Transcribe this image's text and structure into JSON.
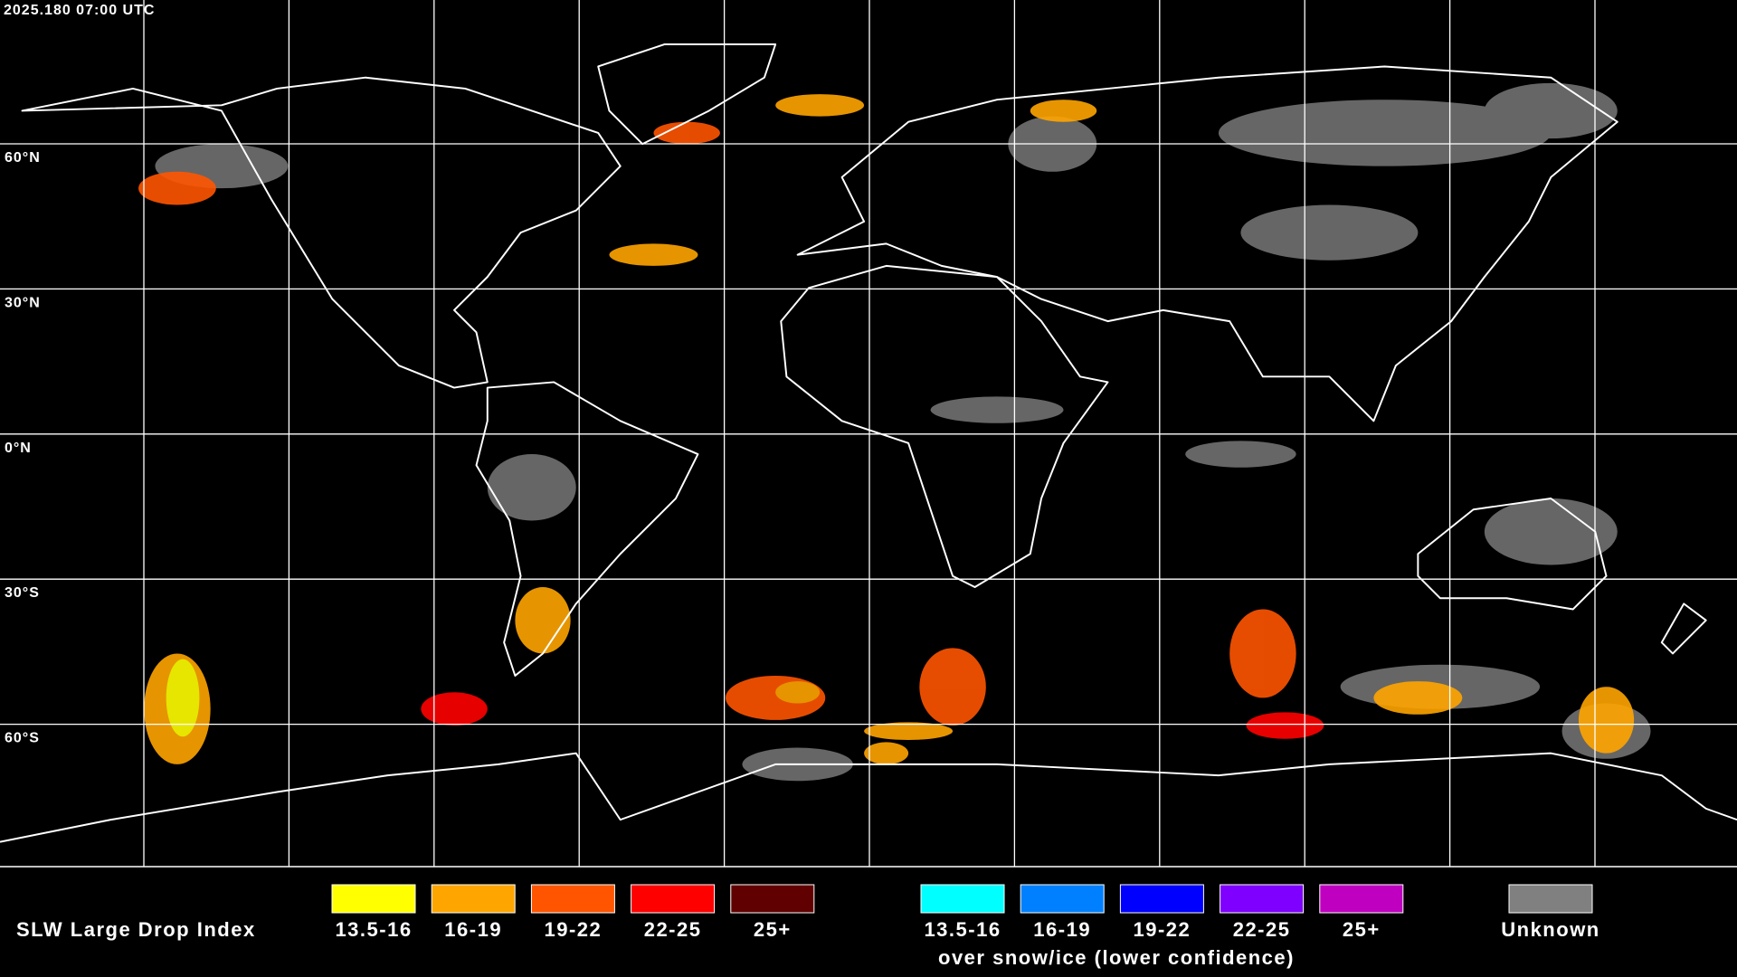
{
  "header": {
    "timestamp": "2025.180 07:00 UTC"
  },
  "map": {
    "latitude_labels": [
      "60°N",
      "30°N",
      "0°N",
      "30°S",
      "60°S"
    ]
  },
  "legend": {
    "title": "SLW Large Drop Index",
    "items": [
      {
        "label": "13.5-16",
        "color": "#ffff00"
      },
      {
        "label": "16-19",
        "color": "#ffa500"
      },
      {
        "label": "19-22",
        "color": "#ff5500"
      },
      {
        "label": "22-25",
        "color": "#ff0000"
      },
      {
        "label": "25+",
        "color": "#600000"
      }
    ],
    "snow_ice_items": [
      {
        "label": "13.5-16",
        "color": "#00ffff"
      },
      {
        "label": "16-19",
        "color": "#0080ff"
      },
      {
        "label": "19-22",
        "color": "#0000ff"
      },
      {
        "label": "22-25",
        "color": "#7f00ff"
      },
      {
        "label": "25+",
        "color": "#c000c0"
      }
    ],
    "snow_ice_caption": "over snow/ice (lower confidence)",
    "unknown": {
      "label": "Unknown",
      "color": "#808080"
    }
  }
}
